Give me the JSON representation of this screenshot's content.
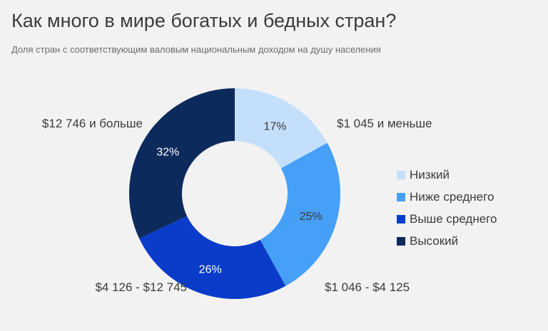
{
  "header": {
    "title": "Как много в мире богатых и бедных стран?",
    "subtitle": "Доля стран с соответствующим валовым национальным доходом на душу населения"
  },
  "chart_data": {
    "type": "pie",
    "donut": true,
    "legend_position": "right",
    "slices": [
      {
        "name": "Низкий",
        "value": 17,
        "value_label": "17%",
        "range_label": "$1 045 и меньше",
        "color": "#c3dffc",
        "label_color": "#3b3b3b"
      },
      {
        "name": "Ниже среднего",
        "value": 25,
        "value_label": "25%",
        "range_label": "$1 046 - $4 125",
        "color": "#47a0f7",
        "label_color": "#3b3b3b"
      },
      {
        "name": "Выше среднего",
        "value": 26,
        "value_label": "26%",
        "range_label": "$4 126 - $12 745",
        "color": "#0a3cc9",
        "label_color": "#ffffff"
      },
      {
        "name": "Высокий",
        "value": 32,
        "value_label": "32%",
        "range_label": "$12 746 и больше",
        "color": "#0d2a5c",
        "label_color": "#ffffff"
      }
    ]
  }
}
